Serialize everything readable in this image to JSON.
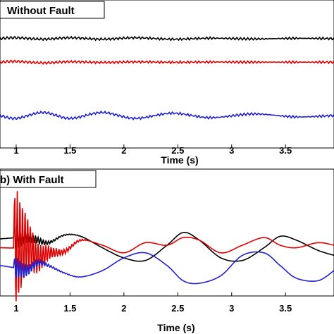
{
  "chart_data": [
    {
      "type": "line",
      "title": "Without Fault",
      "xlabel": "Time (s)",
      "ylabel": "",
      "xlim": [
        0.85,
        3.95
      ],
      "ylim": [
        0,
        1
      ],
      "x_ticks": [
        1,
        1.5,
        2,
        2.5,
        3,
        3.5
      ],
      "x_tick_labels": [
        "1",
        "1.5",
        "2",
        "2.5",
        "3",
        "3.5"
      ],
      "grid": false,
      "legend": "none",
      "series": [
        {
          "color": "#000000",
          "x": [
            0.85,
            1.0,
            1.25,
            1.5,
            1.8,
            2.1,
            2.45,
            2.8,
            3.2,
            3.6,
            3.95
          ],
          "y": [
            0.74,
            0.745,
            0.735,
            0.745,
            0.735,
            0.745,
            0.735,
            0.742,
            0.737,
            0.741,
            0.739
          ]
        },
        {
          "color": "#e00000",
          "x": [
            0.85,
            1.0,
            1.25,
            1.5,
            1.8,
            2.1,
            2.45,
            2.8,
            3.2,
            3.6,
            3.95
          ],
          "y": [
            0.58,
            0.585,
            0.575,
            0.583,
            0.578,
            0.582,
            0.579,
            0.581,
            0.58,
            0.58,
            0.58
          ]
        },
        {
          "color": "#2020d0",
          "x": [
            0.85,
            1.0,
            1.25,
            1.5,
            1.8,
            2.1,
            2.45,
            2.8,
            3.2,
            3.6,
            3.95
          ],
          "y": [
            0.22,
            0.2,
            0.24,
            0.2,
            0.24,
            0.2,
            0.235,
            0.205,
            0.23,
            0.21,
            0.22
          ]
        }
      ]
    },
    {
      "type": "line",
      "title": "b) With Fault",
      "xlabel": "Time (s)",
      "ylabel": "",
      "xlim": [
        0.85,
        3.95
      ],
      "ylim": [
        0,
        1
      ],
      "x_ticks": [
        1,
        1.5,
        2,
        2.5,
        3,
        3.5
      ],
      "x_tick_labels": [
        "1",
        "1.5",
        "2",
        "2.5",
        "3",
        "3.5"
      ],
      "grid": false,
      "legend": "none",
      "fault_time": 1.1,
      "series": [
        {
          "color": "#000000",
          "x": [
            0.85,
            1.0,
            1.1,
            1.2,
            1.3,
            1.45,
            1.6,
            1.8,
            2.0,
            2.2,
            2.4,
            2.55,
            2.7,
            2.9,
            3.1,
            3.3,
            3.45,
            3.6,
            3.8,
            3.95
          ],
          "y": [
            0.45,
            0.46,
            0.47,
            0.44,
            0.42,
            0.48,
            0.47,
            0.38,
            0.3,
            0.28,
            0.4,
            0.5,
            0.44,
            0.3,
            0.28,
            0.38,
            0.47,
            0.44,
            0.36,
            0.32
          ]
        },
        {
          "color": "#e00000",
          "x": [
            0.85,
            1.0,
            1.1,
            1.2,
            1.3,
            1.45,
            1.6,
            1.8,
            2.0,
            2.2,
            2.4,
            2.55,
            2.7,
            2.9,
            3.1,
            3.3,
            3.45,
            3.6,
            3.8,
            3.95
          ],
          "y": [
            0.38,
            0.38,
            0.4,
            0.3,
            0.34,
            0.35,
            0.44,
            0.4,
            0.34,
            0.42,
            0.4,
            0.46,
            0.44,
            0.34,
            0.4,
            0.46,
            0.4,
            0.38,
            0.42,
            0.4
          ]
        },
        {
          "color": "#2020d0",
          "x": [
            0.85,
            1.0,
            1.1,
            1.2,
            1.3,
            1.45,
            1.6,
            1.8,
            2.0,
            2.2,
            2.4,
            2.55,
            2.7,
            2.9,
            3.1,
            3.3,
            3.45,
            3.6,
            3.8,
            3.95
          ],
          "y": [
            0.24,
            0.22,
            0.2,
            0.26,
            0.24,
            0.18,
            0.15,
            0.2,
            0.3,
            0.34,
            0.24,
            0.12,
            0.1,
            0.16,
            0.32,
            0.34,
            0.24,
            0.14,
            0.12,
            0.2
          ]
        }
      ]
    }
  ]
}
